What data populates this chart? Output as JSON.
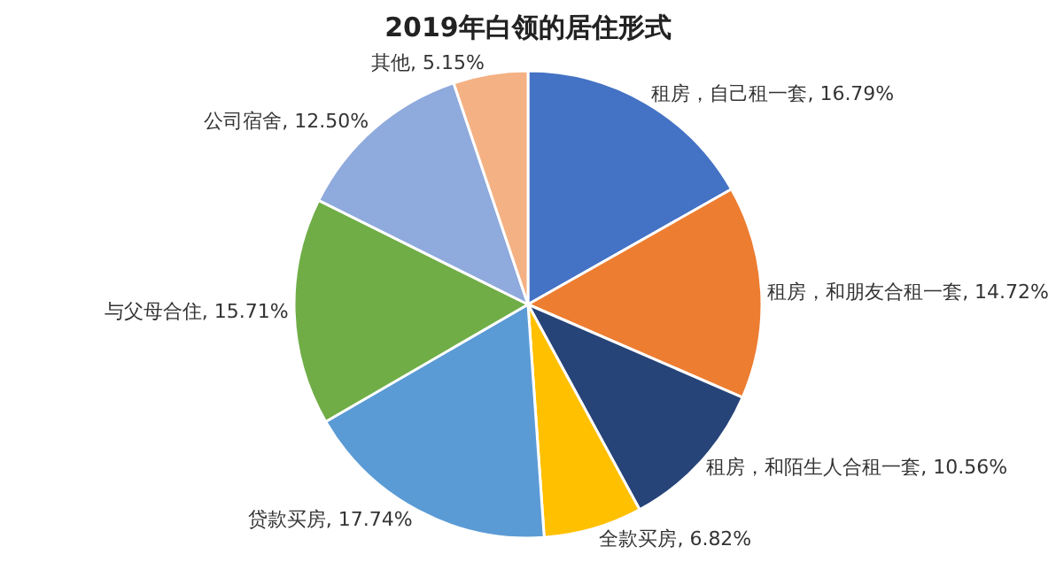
{
  "chart_data": {
    "type": "pie",
    "title": "2019年白领的居住形式",
    "categories": [
      "租房，自己租一套",
      "租房，和朋友合租一套",
      "租房，和陌生人合租一套",
      "全款买房",
      "贷款买房",
      "与父母合住",
      "公司宿舍",
      "其他"
    ],
    "values": [
      16.79,
      14.72,
      10.56,
      6.82,
      17.74,
      15.71,
      12.5,
      5.15
    ],
    "value_labels": [
      "16.79%",
      "14.72%",
      "10.56%",
      "6.82%",
      "17.74%",
      "15.71%",
      "12.50%",
      "5.15%"
    ],
    "colors": [
      "#4472c4",
      "#ed7d31",
      "#264478",
      "#ffc000",
      "#5b9bd5",
      "#70ad47",
      "#8faadc",
      "#f4b183"
    ],
    "legend": false
  }
}
